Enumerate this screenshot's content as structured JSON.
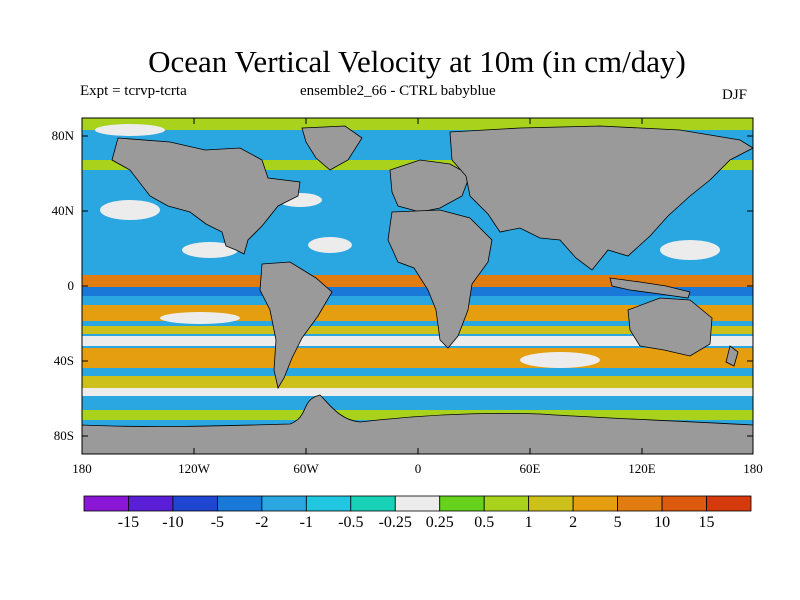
{
  "title": "Ocean Vertical Velocity at 10m (in cm/day)",
  "subtitle_left": "Expt = tcrvp-tcrta",
  "subtitle_center": "ensemble2_66 - CTRL babyblue",
  "season": "DJF",
  "y_ticks": [
    "80N",
    "40N",
    "0",
    "40S",
    "80S"
  ],
  "x_ticks": [
    "180",
    "120W",
    "60W",
    "0",
    "60E",
    "120E",
    "180"
  ],
  "colorbar": {
    "labels": [
      "-15",
      "-10",
      "-5",
      "-2",
      "-1",
      "-0.5",
      "-0.25",
      "0.25",
      "0.5",
      "1",
      "2",
      "5",
      "10",
      "15"
    ],
    "colors": [
      "#8a16d6",
      "#5a1ed6",
      "#1e46d0",
      "#1a78d8",
      "#2aa6e0",
      "#21c6e0",
      "#18d2b8",
      "#ececec",
      "#66d21c",
      "#a8d21c",
      "#cec01a",
      "#e49e10",
      "#e07c10",
      "#dc5a0e",
      "#d43a0c"
    ]
  },
  "colors": {
    "land": "#9a9a9a",
    "coast": "#000000"
  }
}
